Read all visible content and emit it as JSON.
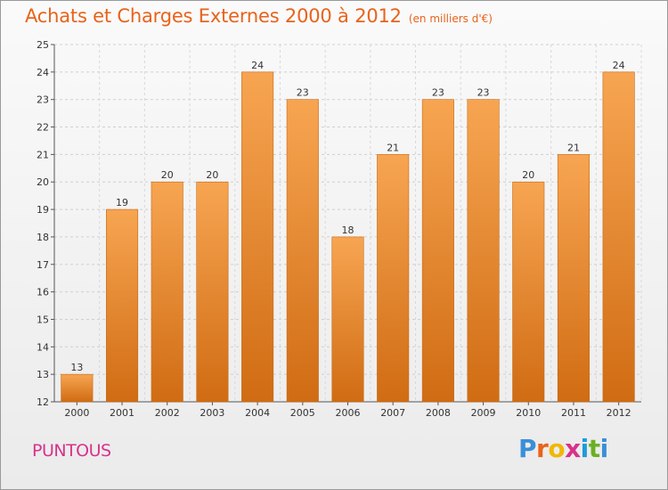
{
  "header": {
    "title": "Achats et Charges Externes 2000 à 2012",
    "subtitle": "(en milliers d'€)"
  },
  "footer": {
    "place": "PUNTOUS",
    "logo_letters": [
      "P",
      "r",
      "o",
      "x",
      "i",
      "t",
      "i"
    ],
    "logo_colors": [
      "#3a8fd8",
      "#e8631a",
      "#f2b705",
      "#d8328a",
      "#1f9bd7",
      "#6ab023",
      "#3a8fd8"
    ]
  },
  "colors": {
    "bar_top": "#f7a552",
    "bar_bottom": "#d06c13",
    "text": "#e8631a"
  },
  "chart_data": {
    "type": "bar",
    "title": "Achats et Charges Externes 2000 à 2012",
    "subtitle": "(en milliers d'€)",
    "categories": [
      "2000",
      "2001",
      "2002",
      "2003",
      "2004",
      "2005",
      "2006",
      "2007",
      "2008",
      "2009",
      "2010",
      "2011",
      "2012"
    ],
    "values": [
      13,
      19,
      20,
      20,
      24,
      23,
      18,
      21,
      23,
      23,
      20,
      21,
      24
    ],
    "ylim": [
      12,
      25
    ],
    "yticks": [
      12,
      13,
      14,
      15,
      16,
      17,
      18,
      19,
      20,
      21,
      22,
      23,
      24,
      25
    ],
    "grid": true,
    "xlabel": "",
    "ylabel": ""
  }
}
